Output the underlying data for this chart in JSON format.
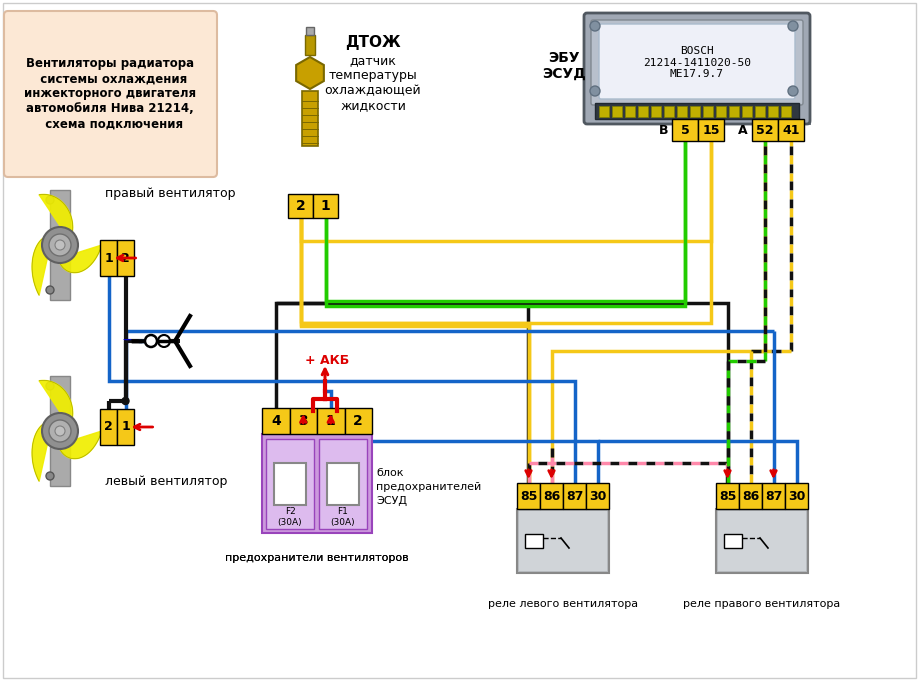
{
  "bg": "#ffffff",
  "title_text": "Вентиляторы радиатора\n  системы охлаждения\nинжекторного двигателя\nавтомобиля Нива 21214,\n  схема подключения",
  "title_box_fc": "#fce8d5",
  "sensor_label1": "ДТОЖ",
  "sensor_label2": "датчик\nтемпературы\nохлаждающей\nжидкости",
  "ecu_label": "ЭБУ\nЭСУД",
  "ecu_inner": "BOSCH\n21214-1411020-50\nME17.9.7",
  "right_fan_lbl": "правый вентилятор",
  "left_fan_lbl": "левый вентилятор",
  "fuse_lbl1": "блок",
  "fuse_lbl2": "предохранителей",
  "fuse_lbl3": "ЭСУД",
  "fuse_bottom": "предохранители вентиляторов",
  "relay_left_lbl": "реле левого вентилятора",
  "relay_right_lbl": "реле правого вентилятора",
  "akb_lbl": "+ АКБ",
  "conn_fc": "#f5c818",
  "relay_fc": "#c8ccd0",
  "fan_fc": "#f0ee00",
  "fuse_fc": "#cc99dd",
  "ecu_fc": "#a0a8b4",
  "ecu_label_fc": "#eef0f8",
  "yel": "#f5c818",
  "grn": "#22cc00",
  "blu": "#1464c8",
  "blk": "#111111",
  "pnk": "#ff88aa",
  "red": "#dd0000",
  "sensor_gold": "#c8a000",
  "sensor_dark": "#7a6800"
}
